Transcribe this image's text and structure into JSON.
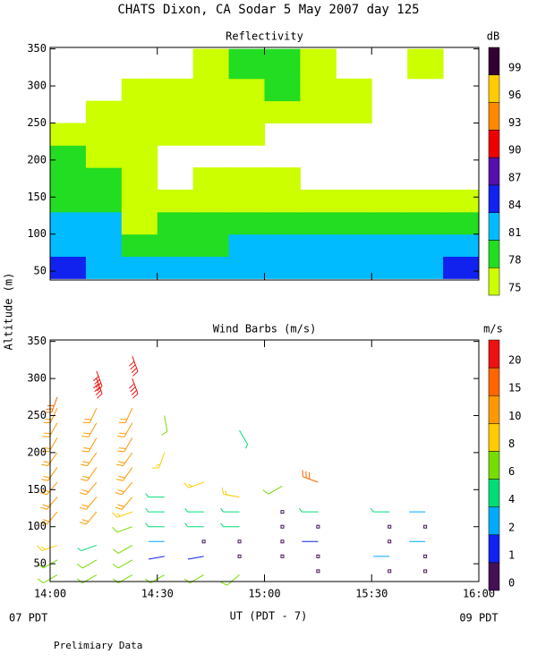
{
  "figure": {
    "title": "CHATS Dixon, CA  Sodar   5 May 2007  day 125",
    "ylabel": "Altitude (m)",
    "xlabel": "UT  (PDT - 7)",
    "footer_left": "07 PDT",
    "footer_right": "09 PDT",
    "note": "Prelimiary Data"
  },
  "chart_data": [
    {
      "type": "heatmap",
      "title": "Reflectivity",
      "x_edges": [
        0,
        10,
        20,
        30,
        40,
        50,
        60,
        70,
        80,
        90,
        100,
        110,
        120
      ],
      "y_edges": [
        40,
        70,
        100,
        130,
        160,
        190,
        220,
        250,
        280,
        310,
        350
      ],
      "values": [
        [
          84,
          81,
          81,
          81,
          81,
          81,
          81,
          81,
          81,
          81,
          81,
          84
        ],
        [
          81,
          81,
          78,
          78,
          78,
          81,
          81,
          81,
          81,
          81,
          81,
          81
        ],
        [
          81,
          81,
          75,
          78,
          78,
          78,
          78,
          78,
          78,
          78,
          78,
          78
        ],
        [
          78,
          78,
          75,
          75,
          75,
          75,
          75,
          75,
          75,
          75,
          75,
          75
        ],
        [
          78,
          78,
          75,
          null,
          75,
          75,
          75,
          null,
          null,
          null,
          null,
          null
        ],
        [
          78,
          75,
          75,
          null,
          null,
          null,
          null,
          null,
          null,
          null,
          null,
          null
        ],
        [
          75,
          75,
          75,
          75,
          75,
          75,
          null,
          null,
          null,
          null,
          null,
          null
        ],
        [
          null,
          75,
          75,
          75,
          75,
          75,
          75,
          75,
          75,
          null,
          null,
          null
        ],
        [
          null,
          null,
          75,
          75,
          75,
          75,
          78,
          75,
          75,
          null,
          null,
          null
        ],
        [
          null,
          null,
          null,
          null,
          75,
          78,
          78,
          75,
          null,
          null,
          75,
          null
        ]
      ],
      "xlim": [
        0,
        120
      ],
      "ylim": [
        38,
        352
      ],
      "xticks": [
        0,
        30,
        60,
        90,
        120
      ],
      "yticks": [
        50,
        100,
        150,
        200,
        250,
        300,
        350
      ],
      "colorbar": {
        "label": "dB",
        "levels": [
          75,
          78,
          81,
          84,
          87,
          90,
          93,
          96,
          99
        ],
        "colors": [
          "#ccff00",
          "#22dd22",
          "#00bbff",
          "#1122ee",
          "#5511aa",
          "#ee0000",
          "#ff8800",
          "#ffcc00",
          "#330033"
        ]
      }
    },
    {
      "type": "barbs",
      "title": "Wind Barbs (m/s)",
      "x": [
        2,
        2,
        2,
        2,
        2,
        2,
        2,
        2,
        2,
        2,
        2,
        2,
        13,
        13,
        13,
        13,
        13,
        13,
        13,
        13,
        13,
        13,
        13,
        13,
        13,
        23,
        23,
        23,
        23,
        23,
        23,
        23,
        23,
        23,
        23,
        23,
        23,
        23,
        23,
        32,
        32,
        32,
        32,
        32,
        32,
        32,
        32,
        43,
        43,
        43,
        43,
        43,
        43,
        53,
        53,
        53,
        53,
        53,
        53,
        53,
        65,
        65,
        65,
        65,
        65,
        75,
        75,
        75,
        75,
        75,
        75,
        95,
        95,
        95,
        95,
        95,
        105,
        105,
        105,
        105,
        105
      ],
      "altitude": [
        35,
        55,
        75,
        120,
        140,
        160,
        180,
        200,
        220,
        240,
        260,
        275,
        35,
        55,
        75,
        120,
        140,
        160,
        180,
        200,
        220,
        240,
        260,
        300,
        310,
        35,
        55,
        75,
        100,
        120,
        140,
        160,
        180,
        200,
        220,
        240,
        260,
        300,
        330,
        35,
        60,
        80,
        100,
        120,
        140,
        200,
        250,
        35,
        60,
        80,
        100,
        120,
        160,
        35,
        60,
        80,
        100,
        120,
        140,
        230,
        60,
        80,
        100,
        120,
        155,
        40,
        60,
        80,
        100,
        120,
        160,
        40,
        60,
        80,
        100,
        120,
        40,
        60,
        80,
        100,
        120
      ],
      "speed": [
        6,
        6,
        8,
        10,
        10,
        10,
        10,
        10,
        10,
        10,
        10,
        15,
        6,
        6,
        4,
        10,
        10,
        10,
        10,
        10,
        10,
        10,
        10,
        20,
        20,
        6,
        6,
        6,
        6,
        8,
        10,
        10,
        10,
        10,
        10,
        10,
        10,
        20,
        20,
        6,
        1,
        2,
        4,
        4,
        4,
        8,
        6,
        6,
        1,
        0,
        4,
        4,
        8,
        6,
        0,
        0,
        4,
        4,
        8,
        4,
        0,
        0,
        0,
        0,
        6,
        0,
        0,
        1,
        0,
        4,
        15,
        0,
        2,
        0,
        0,
        4,
        0,
        0,
        2,
        0,
        2
      ],
      "direction": [
        240,
        240,
        250,
        220,
        220,
        220,
        215,
        215,
        210,
        210,
        205,
        200,
        240,
        240,
        250,
        220,
        220,
        220,
        215,
        215,
        210,
        210,
        205,
        160,
        160,
        240,
        240,
        240,
        250,
        250,
        220,
        220,
        215,
        215,
        210,
        210,
        205,
        160,
        160,
        240,
        260,
        270,
        270,
        270,
        270,
        200,
        170,
        240,
        260,
        0,
        270,
        270,
        250,
        230,
        0,
        0,
        270,
        270,
        280,
        150,
        0,
        0,
        0,
        0,
        240,
        0,
        0,
        270,
        0,
        270,
        290,
        0,
        270,
        0,
        0,
        270,
        0,
        0,
        270,
        0,
        270
      ],
      "xlim": [
        0,
        120
      ],
      "ylim": [
        26,
        352
      ],
      "xticks": [
        {
          "value": 0,
          "label": "14:00"
        },
        {
          "value": 30,
          "label": "14:30"
        },
        {
          "value": 60,
          "label": "15:00"
        },
        {
          "value": 90,
          "label": "15:30"
        },
        {
          "value": 120,
          "label": "16:00"
        }
      ],
      "yticks": [
        50,
        100,
        150,
        200,
        250,
        300,
        350
      ],
      "colorbar": {
        "label": "m/s",
        "levels": [
          0,
          1,
          2,
          4,
          6,
          8,
          10,
          15,
          20
        ],
        "colors": [
          "#441155",
          "#1122ee",
          "#00aaff",
          "#00dd77",
          "#77dd00",
          "#ffcc00",
          "#ff9900",
          "#ff6600",
          "#ee1111"
        ]
      }
    }
  ]
}
